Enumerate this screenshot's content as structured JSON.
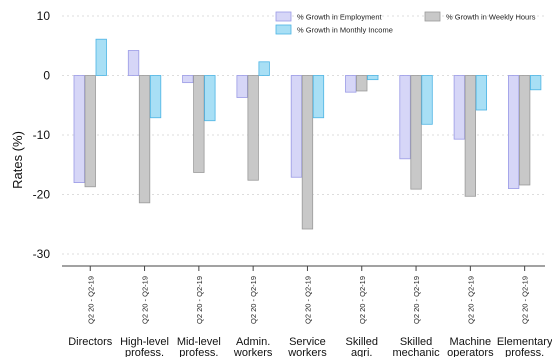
{
  "chart_data": {
    "type": "bar",
    "ylabel": "Rates (%)",
    "xlabel": "",
    "ylim": [
      -30,
      10
    ],
    "yticks": [
      10,
      0,
      -10,
      -20,
      -30
    ],
    "grid": true,
    "legend_position": "top-right",
    "period_label": "Q2 20 - Q2-19",
    "categories": [
      [
        "Directors"
      ],
      [
        "High-level",
        "profess."
      ],
      [
        "Mid-level",
        "profess."
      ],
      [
        "Admin.",
        "workers"
      ],
      [
        "Service",
        "workers"
      ],
      [
        "Skilled",
        "agri."
      ],
      [
        "Skilled",
        "mechanic"
      ],
      [
        "Machine",
        "operators"
      ],
      [
        "Elementary",
        "profess."
      ]
    ],
    "series": [
      {
        "name": "% Growth in Employment",
        "color": "#d6d6f7",
        "stroke": "#9a9ae6",
        "values": [
          -18.0,
          4.2,
          -1.2,
          -3.7,
          -17.1,
          -2.8,
          -14.0,
          -10.7,
          -19.0
        ]
      },
      {
        "name": "% Growth in Weekly Hours",
        "color": "#c8c8c8",
        "stroke": "#9a9a9a",
        "values": [
          -18.7,
          -21.4,
          -16.3,
          -17.6,
          -25.8,
          -2.6,
          -19.1,
          -20.3,
          -18.4
        ]
      },
      {
        "name": "% Growth in Monthly Income",
        "color": "#a8dff5",
        "stroke": "#4cb4e4",
        "values": [
          6.1,
          -7.1,
          -7.6,
          2.3,
          -7.1,
          -0.7,
          -8.2,
          -5.8,
          -2.4
        ]
      }
    ],
    "legend_order": [
      0,
      2,
      1
    ]
  }
}
